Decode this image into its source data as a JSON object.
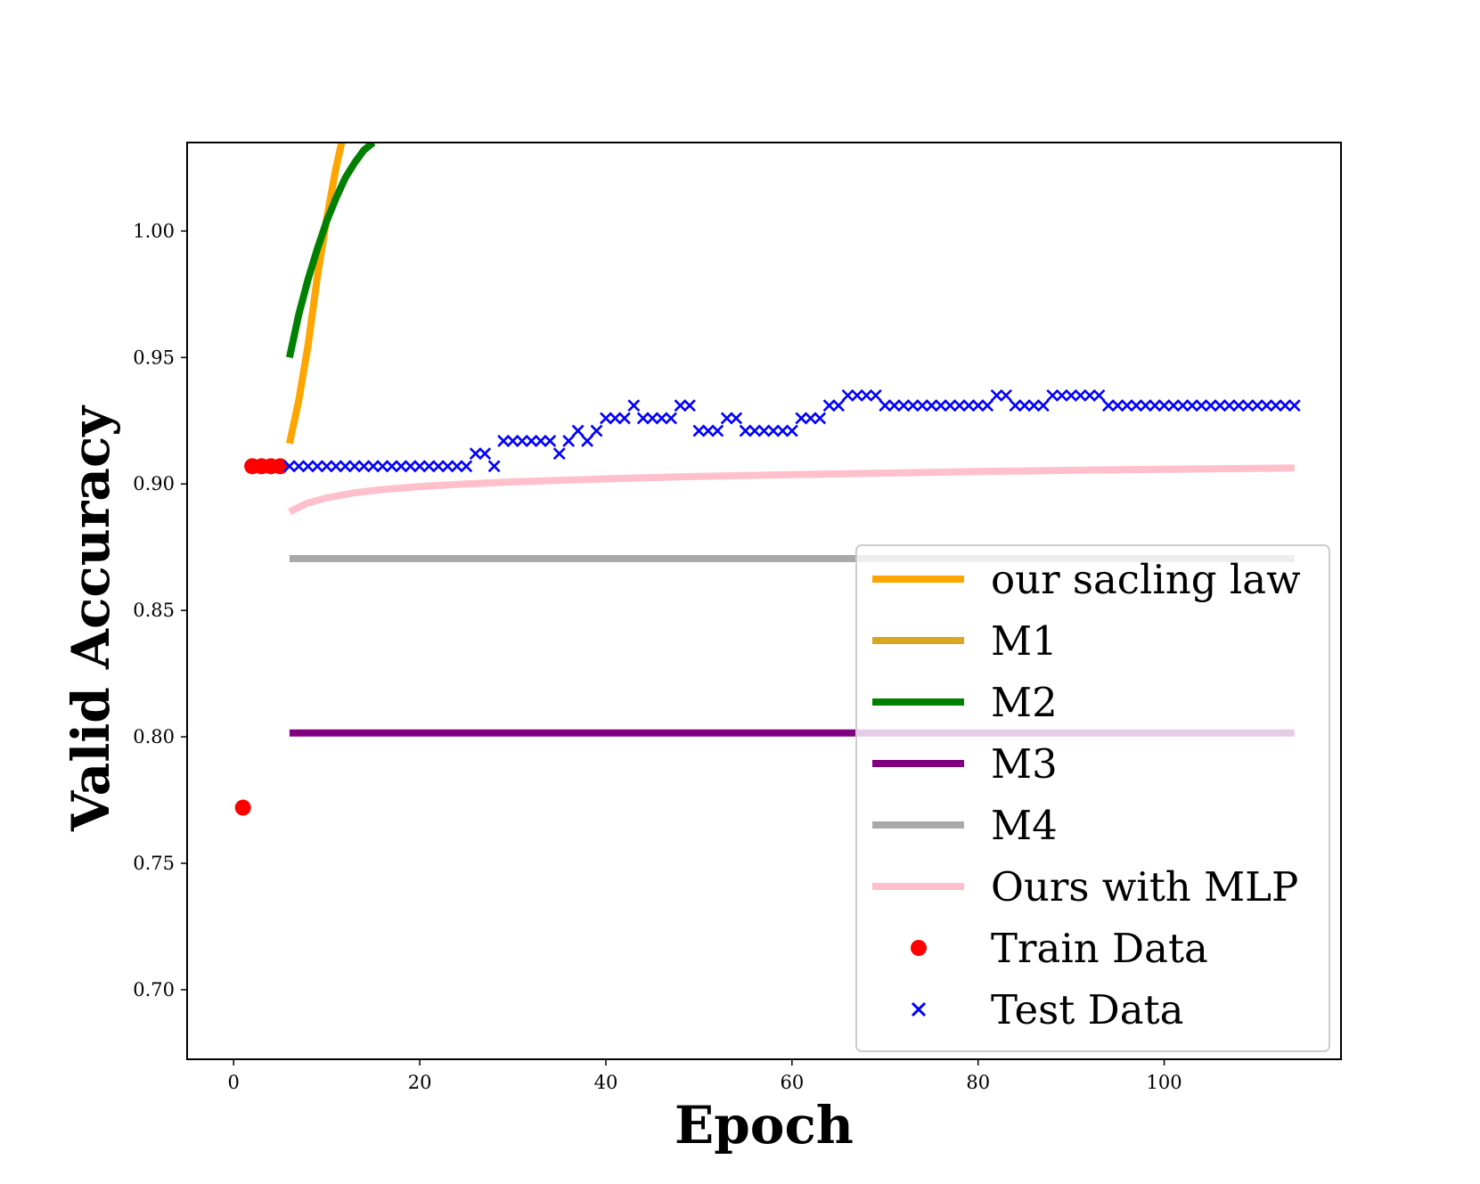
{
  "chart_data": {
    "type": "line",
    "title": "",
    "xlabel": "Epoch",
    "ylabel": "Valid Accuracy",
    "xlim": [
      -5,
      119
    ],
    "ylim": [
      0.6725,
      1.035
    ],
    "x_ticks": [
      0,
      20,
      40,
      60,
      80,
      100
    ],
    "x_tick_labels": [
      "0",
      "20",
      "40",
      "60",
      "80",
      "100"
    ],
    "y_ticks": [
      0.7,
      0.75,
      0.8,
      0.85,
      0.9,
      0.95,
      1.0
    ],
    "y_tick_labels": [
      "0.70",
      "0.75",
      "0.80",
      "0.85",
      "0.90",
      "0.95",
      "1.00"
    ],
    "grid": false,
    "legend_position": "lower-right",
    "series": [
      {
        "name": "our sacling law",
        "kind": "line",
        "color": "#ffa500",
        "x": [
          6,
          7,
          8,
          9,
          10,
          11,
          11.6
        ],
        "y": [
          0.916,
          0.933,
          0.955,
          0.982,
          1.005,
          1.025,
          1.035
        ]
      },
      {
        "name": "M1",
        "kind": "line",
        "color": "#daa520",
        "x": [],
        "y": []
      },
      {
        "name": "M2",
        "kind": "line",
        "color": "#008000",
        "x": [
          6,
          7,
          8,
          9,
          10,
          11,
          12,
          13,
          14,
          15
        ],
        "y": [
          0.95,
          0.967,
          0.981,
          0.993,
          1.004,
          1.013,
          1.021,
          1.027,
          1.032,
          1.035
        ]
      },
      {
        "name": "M3",
        "kind": "line",
        "color": "#800080",
        "x": [
          6,
          114
        ],
        "y": [
          0.8015,
          0.8015
        ]
      },
      {
        "name": "M4",
        "kind": "line",
        "color": "#a9a9a9",
        "x": [
          6,
          114
        ],
        "y": [
          0.8705,
          0.8705
        ]
      },
      {
        "name": "Ours with MLP",
        "kind": "line",
        "color": "#ffc0cb",
        "x": [
          6,
          8,
          10,
          13,
          16,
          20,
          25,
          30,
          40,
          50,
          60,
          70,
          80,
          90,
          100,
          114
        ],
        "y": [
          0.889,
          0.8925,
          0.8945,
          0.8965,
          0.8978,
          0.899,
          0.9,
          0.9008,
          0.902,
          0.903,
          0.9037,
          0.9043,
          0.9049,
          0.9054,
          0.9058,
          0.9063
        ]
      },
      {
        "name": "Train Data",
        "kind": "scatter",
        "marker": "circle",
        "color": "#ff0000",
        "x": [
          1,
          2,
          3,
          4,
          5
        ],
        "y": [
          0.772,
          0.907,
          0.907,
          0.907,
          0.907
        ]
      },
      {
        "name": "Test Data",
        "kind": "scatter",
        "marker": "x",
        "color": "#0000ff",
        "x": [
          6,
          7,
          8,
          9,
          10,
          11,
          12,
          13,
          14,
          15,
          16,
          17,
          18,
          19,
          20,
          21,
          22,
          23,
          24,
          25,
          26,
          27,
          28,
          29,
          30,
          31,
          32,
          33,
          34,
          35,
          36,
          37,
          38,
          39,
          40,
          41,
          42,
          43,
          44,
          45,
          46,
          47,
          48,
          49,
          50,
          51,
          52,
          53,
          54,
          55,
          56,
          57,
          58,
          59,
          60,
          61,
          62,
          63,
          64,
          65,
          66,
          67,
          68,
          69,
          70,
          71,
          72,
          73,
          74,
          75,
          76,
          77,
          78,
          79,
          80,
          81,
          82,
          83,
          84,
          85,
          86,
          87,
          88,
          89,
          90,
          91,
          92,
          93,
          94,
          95,
          96,
          97,
          98,
          99,
          100,
          101,
          102,
          103,
          104,
          105,
          106,
          107,
          108,
          109,
          110,
          111,
          112,
          113,
          114
        ],
        "y": [
          0.907,
          0.907,
          0.907,
          0.907,
          0.907,
          0.907,
          0.907,
          0.907,
          0.907,
          0.907,
          0.907,
          0.907,
          0.907,
          0.907,
          0.907,
          0.907,
          0.907,
          0.907,
          0.907,
          0.907,
          0.912,
          0.912,
          0.907,
          0.917,
          0.917,
          0.917,
          0.917,
          0.917,
          0.917,
          0.912,
          0.917,
          0.921,
          0.917,
          0.921,
          0.926,
          0.926,
          0.926,
          0.931,
          0.926,
          0.926,
          0.926,
          0.926,
          0.931,
          0.931,
          0.921,
          0.921,
          0.921,
          0.926,
          0.926,
          0.921,
          0.921,
          0.921,
          0.921,
          0.921,
          0.921,
          0.926,
          0.926,
          0.926,
          0.931,
          0.931,
          0.935,
          0.935,
          0.935,
          0.935,
          0.931,
          0.931,
          0.931,
          0.931,
          0.931,
          0.931,
          0.931,
          0.931,
          0.931,
          0.931,
          0.931,
          0.931,
          0.935,
          0.935,
          0.931,
          0.931,
          0.931,
          0.931,
          0.935,
          0.935,
          0.935,
          0.935,
          0.935,
          0.935,
          0.931,
          0.931,
          0.931,
          0.931,
          0.931,
          0.931,
          0.931,
          0.931,
          0.931,
          0.931,
          0.931,
          0.931,
          0.931,
          0.931,
          0.931,
          0.931,
          0.931,
          0.931,
          0.931,
          0.931,
          0.931
        ]
      }
    ]
  }
}
